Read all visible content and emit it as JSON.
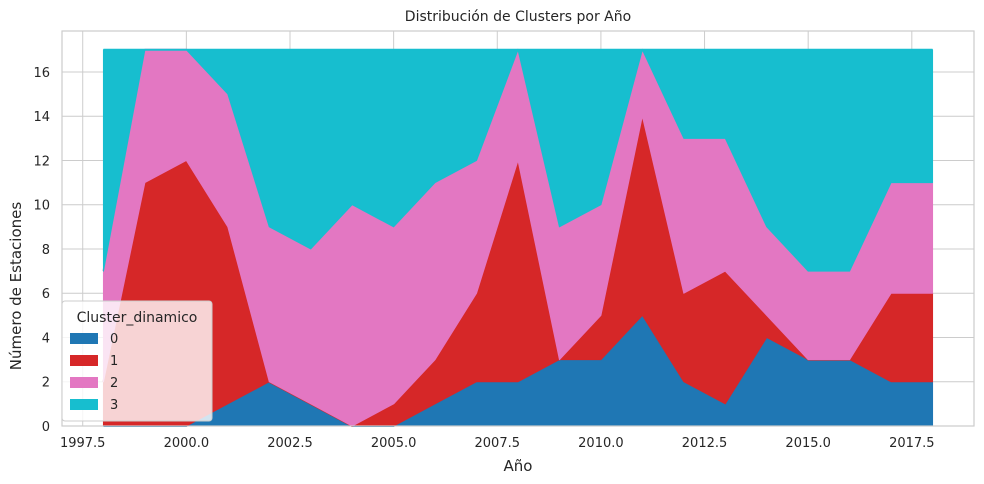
{
  "chart_data": {
    "type": "area",
    "stacked": true,
    "title": "Distribución de Clusters por Año",
    "xlabel": "Año",
    "ylabel": "Número de Estaciones",
    "x": [
      1998,
      1999,
      2000,
      2001,
      2002,
      2003,
      2004,
      2005,
      2006,
      2007,
      2008,
      2009,
      2010,
      2011,
      2012,
      2013,
      2014,
      2015,
      2016,
      2017,
      2018
    ],
    "xticks": [
      1997.5,
      2000.0,
      2002.5,
      2005.0,
      2007.5,
      2010.0,
      2012.5,
      2015.0,
      2017.5
    ],
    "xtick_labels": [
      "1997.5",
      "2000.0",
      "2002.5",
      "2005.0",
      "2007.5",
      "2010.0",
      "2012.5",
      "2015.0",
      "2017.5"
    ],
    "yticks": [
      0,
      2,
      4,
      6,
      8,
      10,
      12,
      14,
      16
    ],
    "ytick_labels": [
      "0",
      "2",
      "4",
      "6",
      "8",
      "10",
      "12",
      "14",
      "16"
    ],
    "xlim": [
      1997.0,
      2019.0
    ],
    "ylim": [
      0,
      17.85
    ],
    "grid": true,
    "legend": {
      "title": "Cluster_dinamico",
      "placement": "lower-left"
    },
    "series": [
      {
        "name": "0",
        "color": "#1f77b4",
        "values": [
          0,
          0,
          0,
          1,
          2,
          1,
          0,
          0,
          1,
          2,
          2,
          3,
          3,
          5,
          2,
          1,
          4,
          3,
          3,
          2,
          2
        ]
      },
      {
        "name": "1",
        "color": "#d62728",
        "values": [
          2,
          11,
          12,
          8,
          0,
          0,
          0,
          1,
          2,
          4,
          10,
          0,
          2,
          9,
          4,
          6,
          1,
          0,
          0,
          4,
          4
        ]
      },
      {
        "name": "2",
        "color": "#e377c2",
        "values": [
          5,
          6,
          5,
          6,
          7,
          7,
          10,
          8,
          8,
          6,
          5,
          6,
          5,
          3,
          7,
          6,
          4,
          4,
          4,
          5,
          5
        ]
      },
      {
        "name": "3",
        "color": "#17becf",
        "values": [
          10,
          0,
          0,
          2,
          8,
          9,
          7,
          8,
          6,
          5,
          0,
          8,
          7,
          0,
          4,
          4,
          8,
          10,
          10,
          6,
          6
        ]
      }
    ]
  }
}
